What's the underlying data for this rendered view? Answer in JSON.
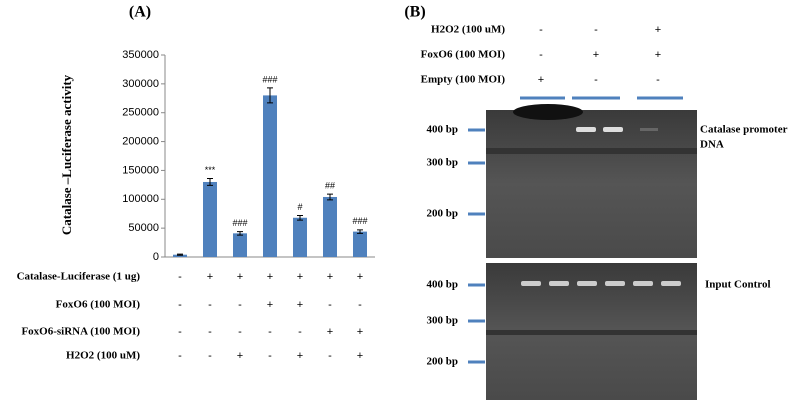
{
  "chart_data": {
    "type": "bar",
    "title": "(A)",
    "ylabel": "Catalase –Luciferase activity",
    "values": [
      4000,
      130000,
      41000,
      280000,
      68000,
      104000,
      44000
    ],
    "errors": [
      1000,
      6000,
      3000,
      13000,
      4000,
      5000,
      3000
    ],
    "annotations": [
      null,
      "***",
      "###",
      "###",
      "#",
      "##",
      "###"
    ],
    "color": "#4f81bd",
    "ylim": [
      0,
      350000
    ],
    "yticks": [
      0,
      50000,
      100000,
      150000,
      200000,
      250000,
      300000,
      350000
    ],
    "conditions": [
      {
        "label": "Catalase-Luciferase (1 ug)",
        "marks": [
          "-",
          "+",
          "+",
          "+",
          "+",
          "+",
          "+"
        ]
      },
      {
        "label": "FoxO6 (100 MOI)",
        "marks": [
          "-",
          "-",
          "-",
          "+",
          "+",
          "-",
          "-"
        ]
      },
      {
        "label": "FoxO6-siRNA (100 MOI)",
        "marks": [
          "-",
          "-",
          "-",
          "-",
          "-",
          "+",
          "+"
        ]
      },
      {
        "label": "H2O2 (100 uM)",
        "marks": [
          "-",
          "-",
          "+",
          "-",
          "+",
          "-",
          "+"
        ]
      }
    ]
  },
  "panel_b": {
    "title": "(B)",
    "lanes": [
      {
        "label": "H2O2 (100 uM)",
        "marks": [
          "-",
          "-",
          "+"
        ]
      },
      {
        "label": "FoxO6 (100 MOI)",
        "marks": [
          "-",
          "+",
          "+"
        ]
      },
      {
        "label": "Empty (100 MOI)",
        "marks": [
          "+",
          "-",
          "-"
        ]
      }
    ],
    "top_markers": [
      "400 bp",
      "300 bp",
      "200 bp"
    ],
    "bottom_markers": [
      "400 bp",
      "300 bp",
      "200 bp"
    ],
    "top_label": [
      "Catalase promoter",
      "DNA"
    ],
    "bottom_label": "Input Control"
  }
}
